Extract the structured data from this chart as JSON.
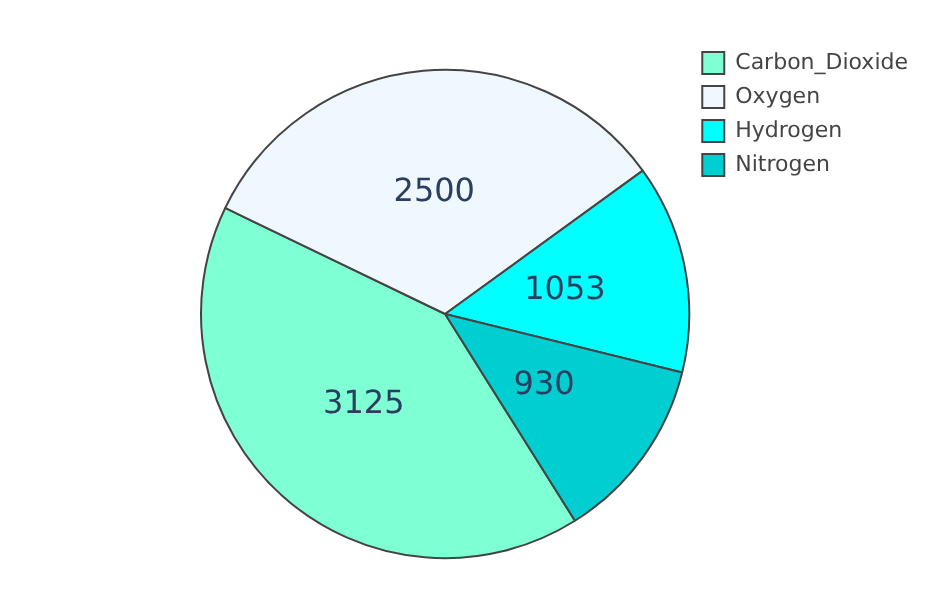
{
  "chart_data": {
    "type": "pie",
    "categories": [
      "Carbon_Dioxide",
      "Oxygen",
      "Hydrogen",
      "Nitrogen"
    ],
    "values": [
      3125,
      2500,
      1053,
      930
    ],
    "colors": [
      "#7fffd4",
      "#f0f8ff",
      "#00ffff",
      "#00ced1"
    ],
    "data_labels": true,
    "legend": "top right"
  }
}
